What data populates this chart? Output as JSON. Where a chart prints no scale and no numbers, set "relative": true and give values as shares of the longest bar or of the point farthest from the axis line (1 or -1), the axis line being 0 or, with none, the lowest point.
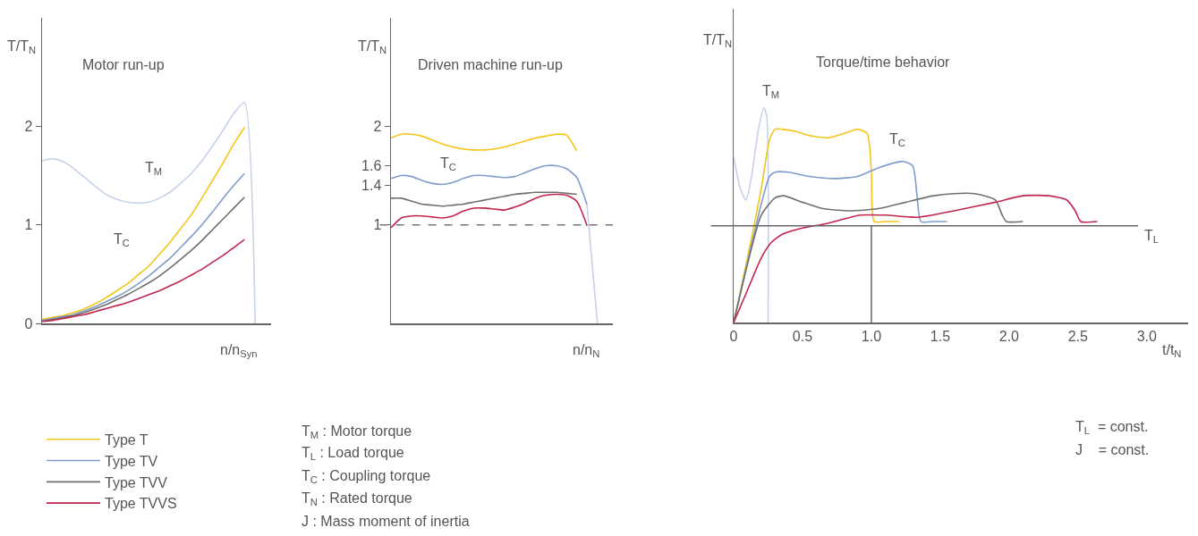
{
  "chart_data": [
    {
      "type": "line",
      "title": "Motor run-up",
      "xlabel": "n/n$_{Syn}$",
      "ylabel": "T/T$_{N}$",
      "categories": [
        null,
        null,
        null,
        null,
        null,
        null,
        null,
        null,
        null,
        null,
        null,
        null,
        null,
        null,
        null,
        null,
        null,
        null,
        null,
        null,
        null
      ],
      "ylim": [
        0,
        3.1
      ],
      "yticks": [
        0,
        1,
        2
      ],
      "tick_labels": "y",
      "grid": false,
      "legend": "bottom",
      "marker": "none",
      "line_style": "solid",
      "annotations": [
        "T$_{M}$",
        "T$_{C}$"
      ],
      "series": [
        {
          "color": "#c5d2e8",
          "values": [
            1.65,
            1.67,
            1.64,
            1.57,
            1.48,
            1.39,
            1.31,
            1.26,
            1.23,
            1.22,
            1.23,
            1.27,
            1.33,
            1.42,
            1.52,
            1.65,
            1.8,
            1.96,
            2.13,
            2.24,
            0
          ]
        },
        {
          "name": "Type T",
          "color": "#f5c518",
          "values": [
            0.04,
            0.06,
            0.08,
            0.11,
            0.15,
            0.2,
            0.26,
            0.33,
            0.4,
            0.49,
            0.58,
            0.7,
            0.82,
            0.96,
            1.1,
            1.27,
            1.45,
            1.63,
            1.82,
            1.99,
            null
          ]
        },
        {
          "name": "Type TV",
          "color": "#7f9ccc",
          "values": [
            0.03,
            0.05,
            0.07,
            0.09,
            0.13,
            0.17,
            0.22,
            0.27,
            0.33,
            0.4,
            0.48,
            0.57,
            0.66,
            0.77,
            0.88,
            1.0,
            1.13,
            1.27,
            1.4,
            1.52,
            null
          ]
        },
        {
          "name": "Type TVV",
          "color": "#707070",
          "values": [
            0.02,
            0.04,
            0.06,
            0.08,
            0.11,
            0.15,
            0.19,
            0.24,
            0.29,
            0.35,
            0.41,
            0.48,
            0.56,
            0.65,
            0.74,
            0.84,
            0.95,
            1.06,
            1.17,
            1.28,
            null
          ]
        },
        {
          "name": "Type TVVS",
          "color": "#c2254e",
          "values": [
            0.02,
            0.03,
            0.05,
            0.07,
            0.09,
            0.12,
            0.15,
            0.18,
            0.21,
            0.25,
            0.29,
            0.33,
            0.38,
            0.43,
            0.49,
            0.55,
            0.62,
            0.69,
            0.77,
            0.85,
            null
          ]
        }
      ]
    },
    {
      "type": "line",
      "title": "Driven machine run-up",
      "xlabel": "n/n$_{N}$",
      "ylabel": "T/T$_{N}$",
      "categories": [
        null,
        null,
        null,
        null,
        null,
        null,
        null,
        null,
        null,
        null,
        null,
        null,
        null,
        null,
        null,
        null,
        null,
        null,
        null,
        null,
        null
      ],
      "ylim": [
        0,
        3.1
      ],
      "yticks": [
        1,
        1.4,
        1.6,
        2
      ],
      "tick_labels": "y",
      "grid": false,
      "marker": "none",
      "line_style": "solid",
      "ref_lines": [
        {
          "axis": "y",
          "value": 1,
          "color": "#777777",
          "line_style": "dashed"
        }
      ],
      "annotations": [
        "T$_{C}$",
        "T$_{M}$ : Motor torque",
        "T$_{L}$ : Load torque",
        "T$_{C}$ : Coupling torque",
        "T$_{N}$ : Rated torque",
        "J : Mass moment of inertia"
      ],
      "series": [
        {
          "color": "#c5d2e8",
          "values": [
            null,
            null,
            null,
            null,
            null,
            null,
            null,
            null,
            null,
            null,
            null,
            null,
            null,
            null,
            null,
            null,
            null,
            null,
            null,
            1.2,
            0
          ]
        },
        {
          "color": "#f5c518",
          "values": [
            1.88,
            1.92,
            1.92,
            1.9,
            1.86,
            1.82,
            1.79,
            1.77,
            1.76,
            1.76,
            1.77,
            1.79,
            1.82,
            1.85,
            1.88,
            1.9,
            1.92,
            1.91,
            1.75,
            null,
            null
          ]
        },
        {
          "color": "#7f9ccc",
          "values": [
            1.47,
            1.5,
            1.49,
            1.45,
            1.42,
            1.41,
            1.43,
            1.47,
            1.5,
            1.5,
            1.49,
            1.48,
            1.49,
            1.53,
            1.57,
            1.6,
            1.6,
            1.57,
            1.48,
            1.2,
            null
          ]
        },
        {
          "color": "#707070",
          "values": [
            1.27,
            1.27,
            1.24,
            1.21,
            1.2,
            1.19,
            1.2,
            1.21,
            1.23,
            1.25,
            1.27,
            1.29,
            1.31,
            1.32,
            1.33,
            1.33,
            1.33,
            1.32,
            1.31,
            null,
            null
          ]
        },
        {
          "color": "#c2254e",
          "values": [
            0.97,
            1.07,
            1.09,
            1.09,
            1.08,
            1.07,
            1.09,
            1.14,
            1.17,
            1.17,
            1.16,
            1.15,
            1.18,
            1.22,
            1.27,
            1.3,
            1.31,
            1.3,
            1.24,
            0.99,
            null
          ]
        }
      ]
    },
    {
      "type": "line",
      "title": "Torque/time behavior",
      "xlabel": "t/t$_{N}$",
      "ylabel": "T/T$_{N}$",
      "relative": true,
      "xlim": [
        0,
        3.3
      ],
      "xticks": [
        0,
        0.5,
        {
          "value": 1,
          "label": "1.0"
        },
        1.5,
        {
          "value": 2,
          "label": "2.0"
        },
        2.5,
        {
          "value": 3,
          "label": "3.0"
        }
      ],
      "tick_labels": "x",
      "grid": false,
      "marker": "none",
      "line_style": "solid",
      "ref_lines": [
        {
          "axis": "y",
          "value": 0.45,
          "label": "T$_{L}$",
          "color": "#666666"
        },
        {
          "axis": "x",
          "value": 1,
          "color": "#666666"
        }
      ],
      "annotations": [
        "T$_{M}$",
        "T$_{C}$",
        "T$_{L}$  = const.",
        "J    = const."
      ],
      "series": [
        {
          "color": "#c5d2e8",
          "x": [
            0,
            0.05,
            0.09,
            0.13,
            0.18,
            0.22,
            0.24,
            0.25
          ],
          "values": [
            0.77,
            0.62,
            0.57,
            0.68,
            0.9,
            1.0,
            0.96,
            0
          ]
        },
        {
          "color": "#f5c518",
          "x": [
            0,
            0.1,
            0.2,
            0.26,
            0.3,
            0.35,
            0.45,
            0.55,
            0.69,
            0.8,
            0.9,
            0.97,
            1.0,
            1.02,
            1.1,
            1.2
          ],
          "values": [
            0,
            0.3,
            0.62,
            0.85,
            0.9,
            0.9,
            0.89,
            0.87,
            0.86,
            0.88,
            0.9,
            0.88,
            0.7,
            0.47,
            0.47,
            0.47
          ]
        },
        {
          "color": "#7f9ccc",
          "x": [
            0,
            0.1,
            0.2,
            0.26,
            0.3,
            0.4,
            0.55,
            0.74,
            0.9,
            1.05,
            1.23,
            1.3,
            1.33,
            1.36,
            1.45,
            1.55
          ],
          "values": [
            0,
            0.28,
            0.55,
            0.68,
            0.7,
            0.7,
            0.68,
            0.67,
            0.68,
            0.72,
            0.75,
            0.73,
            0.6,
            0.47,
            0.47,
            0.47
          ]
        },
        {
          "color": "#707070",
          "x": [
            0,
            0.1,
            0.2,
            0.3,
            0.36,
            0.5,
            0.65,
            0.85,
            1.05,
            1.25,
            1.45,
            1.6,
            1.75,
            1.9,
            1.95,
            1.98,
            2.1
          ],
          "values": [
            0,
            0.27,
            0.5,
            0.58,
            0.59,
            0.56,
            0.53,
            0.52,
            0.53,
            0.56,
            0.59,
            0.6,
            0.6,
            0.57,
            0.5,
            0.47,
            0.47
          ]
        },
        {
          "color": "#c2254e",
          "x": [
            0,
            0.1,
            0.2,
            0.27,
            0.35,
            0.5,
            0.67,
            0.92,
            1.1,
            1.34,
            1.6,
            1.9,
            2.1,
            2.29,
            2.42,
            2.48,
            2.52,
            2.64
          ],
          "values": [
            0,
            0.15,
            0.3,
            0.37,
            0.41,
            0.44,
            0.46,
            0.5,
            0.5,
            0.49,
            0.52,
            0.56,
            0.59,
            0.59,
            0.57,
            0.52,
            0.47,
            0.47
          ]
        }
      ]
    }
  ]
}
